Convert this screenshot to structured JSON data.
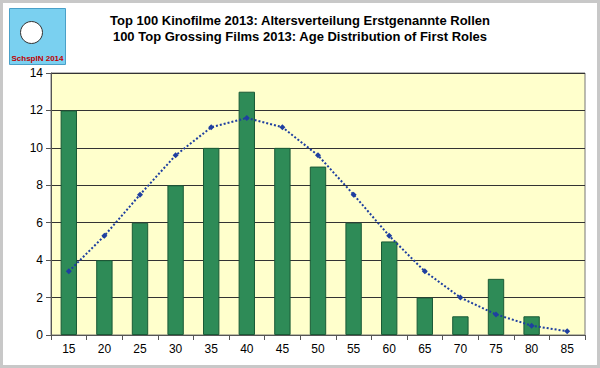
{
  "chart_data": {
    "type": "bar",
    "title": "Top 100 Kinofilme 2013: Altersverteilung Erstgenannte Rollen",
    "subtitle": "100 Top Grossing Films 2013: Age Distribution of First Roles",
    "annotations": [
      "SchspIN 2014"
    ],
    "categories": [
      "15",
      "20",
      "25",
      "30",
      "35",
      "40",
      "45",
      "50",
      "55",
      "60",
      "65",
      "70",
      "75",
      "80",
      "85"
    ],
    "series": [
      {
        "type": "bar",
        "color": "#2e8b57",
        "values": [
          12,
          4,
          6,
          8,
          10,
          13,
          10,
          9,
          6,
          5,
          2,
          1,
          3,
          1,
          null
        ]
      },
      {
        "type": "line",
        "color": "#1f3fa0",
        "line_style": "dotted",
        "marker": "diamond",
        "values": [
          3.4,
          5.3,
          7.5,
          9.6,
          11.1,
          11.6,
          11.1,
          9.6,
          7.5,
          5.3,
          3.4,
          2.0,
          1.1,
          0.5,
          0.2
        ]
      }
    ],
    "ylim": [
      0,
      14
    ],
    "yticks": [
      0,
      2,
      4,
      6,
      8,
      10,
      12,
      14
    ],
    "grid": true
  }
}
